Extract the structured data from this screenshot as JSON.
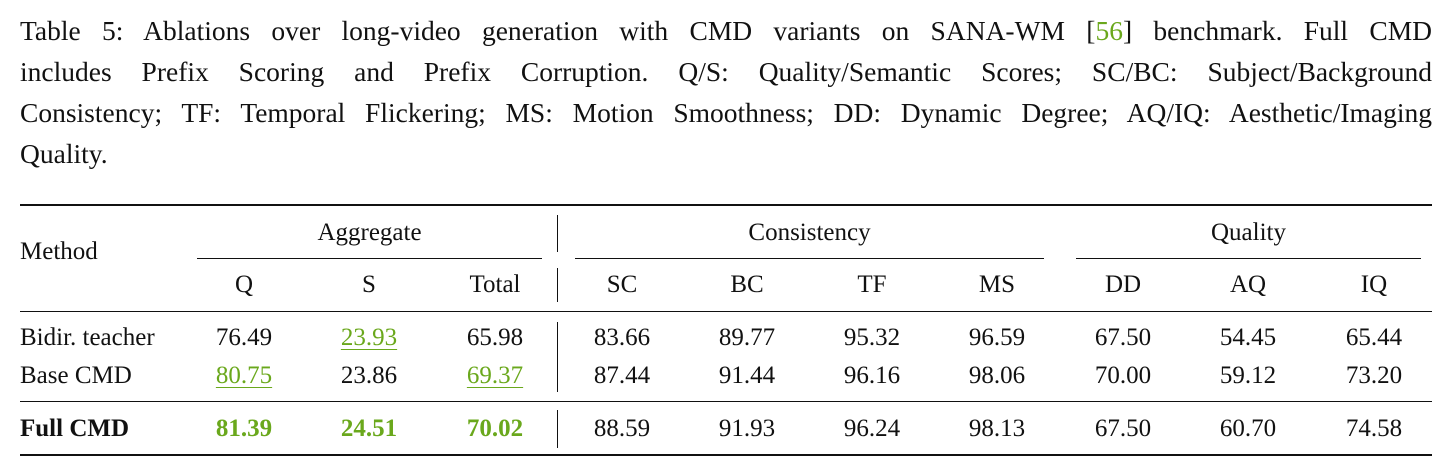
{
  "caption": {
    "lines": [
      [
        "Table 5: Ablations over long-video generation with CMD variants on SANA-WM [",
        "56",
        "] benchmark. Full CMD"
      ],
      "includes Prefix Scoring and Prefix Corruption. Q/S: Quality/Semantic Scores; SC/BC: Subject/Background",
      "Consistency; TF: Temporal Flickering; MS: Motion Smoothness; DD: Dynamic Degree; AQ/IQ: Aesthetic/Imaging",
      "Quality."
    ],
    "reference_color": "#6aa81c"
  },
  "table": {
    "method_header": "Method",
    "groups": [
      {
        "label": "Aggregate",
        "span": 3
      },
      {
        "label": "Consistency",
        "span": 4
      },
      {
        "label": "Quality",
        "span": 3
      }
    ],
    "columns": [
      "Q",
      "S",
      "Total",
      "SC",
      "BC",
      "TF",
      "MS",
      "DD",
      "AQ",
      "IQ"
    ],
    "accent_color": "#6aa81c",
    "rows": [
      {
        "method": "Bidir. teacher",
        "bold": false,
        "cells": [
          "76.49",
          {
            "text": "23.93",
            "style": "second"
          },
          "65.98",
          "83.66",
          "89.77",
          "95.32",
          "96.59",
          "67.50",
          "54.45",
          "65.44"
        ]
      },
      {
        "method": "Base CMD",
        "bold": false,
        "cells": [
          {
            "text": "80.75",
            "style": "second"
          },
          "23.86",
          {
            "text": "69.37",
            "style": "second"
          },
          "87.44",
          "91.44",
          "96.16",
          "98.06",
          "70.00",
          "59.12",
          "73.20"
        ]
      },
      {
        "method": "Full CMD",
        "bold": true,
        "cells": [
          {
            "text": "81.39",
            "style": "best"
          },
          {
            "text": "24.51",
            "style": "best"
          },
          {
            "text": "70.02",
            "style": "best"
          },
          "88.59",
          "91.93",
          "96.24",
          "98.13",
          "67.50",
          "60.70",
          "74.58"
        ]
      }
    ]
  }
}
